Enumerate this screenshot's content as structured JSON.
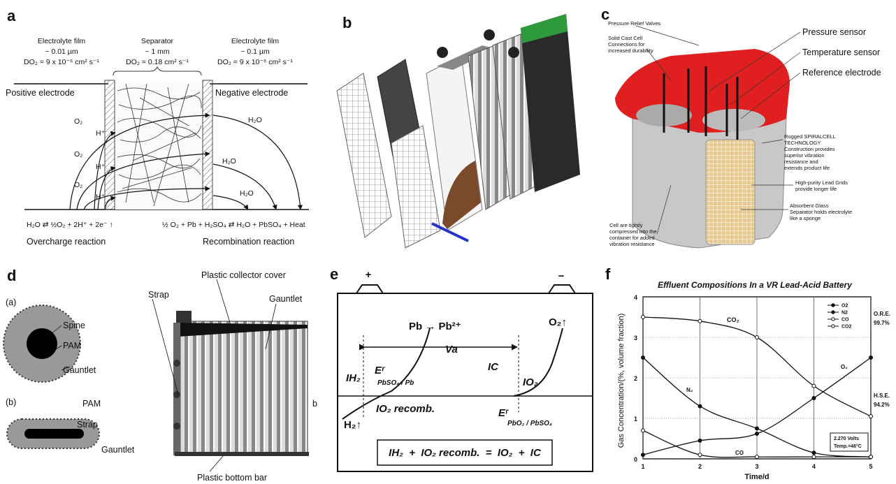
{
  "panel_a": {
    "label": "a",
    "left_film": [
      "Electrolyte film",
      "~ 0.01 µm",
      "DO₂ = 9 x 10⁻⁶ cm² s⁻¹"
    ],
    "separator": [
      "Separator",
      "~ 1 mm",
      "DO₂ = 0.18 cm² s⁻¹"
    ],
    "right_film": [
      "Electrolyte film",
      "~ 0.1 µm",
      "DO₂ = 9 x 10⁻⁶ cm² s⁻¹"
    ],
    "positive": "Positive electrode",
    "negative": "Negative electrode",
    "species": [
      "O₂",
      "H⁺",
      "O₂",
      "H⁺",
      "O₂",
      "H⁺",
      "H₂O",
      "H₂O",
      "H₂O"
    ],
    "overcharge_equation": "H₂O ⇄ ½O₂ + 2H⁺ + 2e⁻ ↑",
    "recombination_equation": "½ O₂ + Pb + H₂SO₄ ⇄ H₂O + PbSO₄ + Heat",
    "overcharge": "Overcharge reaction",
    "recombination": "Recombination reaction"
  },
  "panel_b": {
    "label": "b"
  },
  "panel_c": {
    "label": "c",
    "valves": "Pressure Relief Valves",
    "connections": [
      "Solid Cast Cell",
      "Connections for",
      "increased durability"
    ],
    "pressure": "Pressure sensor",
    "temperature": "Temperature sensor",
    "reference": "Reference electrode",
    "spiralcell": [
      "Rugged SPIRALCELL",
      "TECHNOLOGY",
      "Construction provides",
      "superior vibration",
      "resistance and",
      "extends product life"
    ],
    "grids": [
      "High-purity Lead Grids",
      "provide longer life"
    ],
    "glass": [
      "Absorbent Glass",
      "Separator holds electrolyte",
      "like a sponge"
    ],
    "cells": [
      "Cell are tightly",
      "compressed into the",
      "container for added",
      "vibration resistance"
    ]
  },
  "panel_d": {
    "label": "d",
    "a": "(a)",
    "a_spine": "Spine",
    "a_pam": "PAM",
    "a_gauntlet": "Gauntlet",
    "b": "(b)",
    "b_pam": "PAM",
    "b_strap": "Strap",
    "b_gauntlet": "Gauntlet",
    "strap": "Strap",
    "cover": "Plastic collector cover",
    "gauntlet": "Gauntlet",
    "bottom": "Plastic bottom bar",
    "side_b": "b"
  },
  "panel_e": {
    "label": "e",
    "plus": "+",
    "minus": "−",
    "pb": "Pb → Pb²⁺",
    "o2": "O₂↑",
    "va": "Va",
    "ih2": "IH₂",
    "er1": "Eʳ",
    "er1_sub": "PbSO₄ / Pb",
    "ic": "IC",
    "io2": "IO₂",
    "recomb": "IO₂ recomb.",
    "er2": "Eʳ",
    "er2_sub": "PbO₂ / PbSO₄",
    "h2": "H₂↑",
    "equation": "IH₂  +  IO₂ recomb.  =  IO₂  +  IC"
  },
  "panel_f": {
    "label": "f"
  },
  "chart_data": {
    "type": "line",
    "title": "Effluent Compositions In a VR Lead-Acid Battery",
    "y_label": "Gas Concentration/(%, volume fraction)",
    "x_label": "Time/d",
    "x": [
      1,
      2,
      3,
      4,
      5
    ],
    "xlim": [
      1,
      5
    ],
    "ylim": [
      0,
      4
    ],
    "xticks": [
      1,
      2,
      3,
      4,
      5
    ],
    "yticks": [
      0,
      1,
      2,
      3,
      4
    ],
    "grid": true,
    "legend": "upper right",
    "series": [
      {
        "name": "O2",
        "color": "#111111",
        "values": [
          0.1,
          0.45,
          0.62,
          1.5,
          2.5
        ]
      },
      {
        "name": "N2",
        "color": "#111111",
        "values": [
          2.5,
          1.3,
          0.75,
          0.15,
          0.05
        ]
      },
      {
        "name": "CO",
        "color": "#111111",
        "values": [
          0.7,
          0.1,
          0.05,
          0.05,
          0.05
        ]
      },
      {
        "name": "CO2",
        "color": "#111111",
        "values": [
          3.5,
          3.4,
          3.0,
          1.8,
          1.05
        ]
      }
    ],
    "annotations": [
      "CO₂",
      "N₂",
      "O₂",
      "CO",
      "O.R.E.",
      "99.7%",
      "H.S.E.",
      "94.2%",
      "2.270 Volts",
      "Temp.=46°C"
    ]
  }
}
